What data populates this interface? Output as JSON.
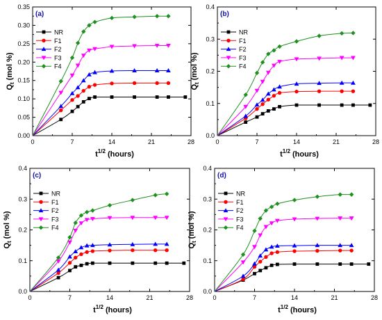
{
  "chart_data": [
    {
      "type": "line",
      "panel_label": "(a)",
      "xlabel": "t",
      "xlabel_sup": "1/2",
      "xlabel_unit": "(hours)",
      "ylabel": "Q",
      "ylabel_sub": "t",
      "ylabel_unit": "(mol %)",
      "xlim": [
        0,
        28
      ],
      "ylim": [
        0,
        0.35
      ],
      "xticks": [
        "0",
        "7",
        "14",
        "21",
        "28"
      ],
      "yticks": [
        "0.00",
        "0.05",
        "0.10",
        "0.15",
        "0.20",
        "0.25",
        "0.30",
        "0.35"
      ],
      "legend_position": "top-left",
      "series": [
        {
          "name": "NR",
          "color": "#000000",
          "marker": "square",
          "x": [
            0,
            5,
            7,
            8,
            9,
            10,
            11,
            14,
            18,
            22,
            24,
            27
          ],
          "y": [
            0,
            0.044,
            0.066,
            0.079,
            0.092,
            0.101,
            0.105,
            0.105,
            0.105,
            0.105,
            0.105,
            0.105
          ]
        },
        {
          "name": "F1",
          "color": "#ff0000",
          "marker": "circle",
          "x": [
            0,
            5,
            7,
            8,
            9,
            10,
            11,
            14,
            18,
            22,
            24
          ],
          "y": [
            0,
            0.069,
            0.097,
            0.108,
            0.122,
            0.133,
            0.138,
            0.142,
            0.143,
            0.143,
            0.143
          ]
        },
        {
          "name": "F2",
          "color": "#0000ff",
          "marker": "triangle-up",
          "x": [
            0,
            5,
            7,
            8,
            9,
            10,
            11,
            14,
            18,
            22,
            24
          ],
          "y": [
            0,
            0.08,
            0.115,
            0.131,
            0.15,
            0.166,
            0.172,
            0.176,
            0.177,
            0.177,
            0.177
          ]
        },
        {
          "name": "F3",
          "color": "#ff00ff",
          "marker": "triangle-down",
          "x": [
            0,
            5,
            7,
            8,
            9,
            10,
            11,
            14,
            18,
            22,
            24
          ],
          "y": [
            0,
            0.117,
            0.164,
            0.191,
            0.218,
            0.232,
            0.236,
            0.242,
            0.244,
            0.245,
            0.245
          ]
        },
        {
          "name": "F4",
          "color": "#1f8f1f",
          "marker": "diamond",
          "x": [
            0,
            5,
            7,
            8,
            9,
            10,
            11,
            14,
            18,
            22,
            24
          ],
          "y": [
            0,
            0.148,
            0.212,
            0.252,
            0.283,
            0.3,
            0.309,
            0.32,
            0.323,
            0.325,
            0.325
          ]
        }
      ]
    },
    {
      "type": "line",
      "panel_label": "(b)",
      "xlabel": "t",
      "xlabel_sup": "1/2",
      "xlabel_unit": "(hours)",
      "ylabel": "Q",
      "ylabel_sub": "t",
      "ylabel_unit": "(mol %)",
      "xlim": [
        0,
        28
      ],
      "ylim": [
        0,
        0.4
      ],
      "xticks": [
        "0",
        "7",
        "14",
        "21",
        "28"
      ],
      "yticks": [
        "0.0",
        "0.1",
        "0.2",
        "0.3",
        "0.4"
      ],
      "legend_position": "top-left",
      "series": [
        {
          "name": "NR",
          "color": "#000000",
          "marker": "square",
          "x": [
            0,
            5,
            7,
            8,
            9,
            10,
            11,
            14,
            18,
            22,
            24,
            27
          ],
          "y": [
            0,
            0.042,
            0.058,
            0.068,
            0.077,
            0.083,
            0.09,
            0.095,
            0.095,
            0.095,
            0.095,
            0.095
          ]
        },
        {
          "name": "F1",
          "color": "#ff0000",
          "marker": "circle",
          "x": [
            0,
            5,
            7,
            8,
            9,
            10,
            11,
            14,
            18,
            22,
            24
          ],
          "y": [
            0,
            0.054,
            0.083,
            0.098,
            0.112,
            0.124,
            0.133,
            0.137,
            0.138,
            0.138,
            0.138
          ]
        },
        {
          "name": "F2",
          "color": "#0000ff",
          "marker": "triangle-up",
          "x": [
            0,
            5,
            7,
            8,
            9,
            10,
            11,
            14,
            18,
            22,
            24
          ],
          "y": [
            0,
            0.061,
            0.096,
            0.111,
            0.13,
            0.143,
            0.152,
            0.161,
            0.163,
            0.164,
            0.164
          ]
        },
        {
          "name": "F3",
          "color": "#ff00ff",
          "marker": "triangle-down",
          "x": [
            0,
            5,
            7,
            8,
            9,
            10,
            11,
            14,
            18,
            22,
            24
          ],
          "y": [
            0,
            0.09,
            0.14,
            0.168,
            0.196,
            0.218,
            0.23,
            0.238,
            0.24,
            0.242,
            0.242
          ]
        },
        {
          "name": "F4",
          "color": "#1f8f1f",
          "marker": "diamond",
          "x": [
            0,
            5,
            7,
            8,
            9,
            10,
            11,
            14,
            18,
            22,
            24
          ],
          "y": [
            0,
            0.127,
            0.195,
            0.228,
            0.254,
            0.265,
            0.277,
            0.293,
            0.31,
            0.318,
            0.319
          ]
        }
      ]
    },
    {
      "type": "line",
      "panel_label": "(c)",
      "xlabel": "t",
      "xlabel_sup": "1/2",
      "xlabel_unit": "(hours)",
      "ylabel": "Q",
      "ylabel_sub": "t",
      "ylabel_unit": "(mol %)",
      "xlim": [
        0,
        28
      ],
      "ylim": [
        0,
        0.4
      ],
      "xticks": [
        "0",
        "7",
        "14",
        "21",
        "28"
      ],
      "yticks": [
        "0.0",
        "0.1",
        "0.2",
        "0.3",
        "0.4"
      ],
      "legend_position": "top-left",
      "series": [
        {
          "name": "NR",
          "color": "#000000",
          "marker": "square",
          "x": [
            0,
            5,
            7,
            8,
            9,
            10,
            11,
            14,
            18,
            22,
            24,
            27
          ],
          "y": [
            0,
            0.045,
            0.068,
            0.08,
            0.085,
            0.09,
            0.092,
            0.092,
            0.092,
            0.092,
            0.092,
            0.092
          ]
        },
        {
          "name": "F1",
          "color": "#ff0000",
          "marker": "circle",
          "x": [
            0,
            5,
            7,
            8,
            9,
            10,
            11,
            14,
            18,
            22,
            24
          ],
          "y": [
            0,
            0.06,
            0.093,
            0.11,
            0.121,
            0.128,
            0.131,
            0.133,
            0.134,
            0.134,
            0.134
          ]
        },
        {
          "name": "F2",
          "color": "#0000ff",
          "marker": "triangle-up",
          "x": [
            0,
            5,
            7,
            8,
            9,
            10,
            11,
            14,
            18,
            22,
            24
          ],
          "y": [
            0,
            0.07,
            0.113,
            0.13,
            0.143,
            0.149,
            0.15,
            0.152,
            0.153,
            0.154,
            0.154
          ]
        },
        {
          "name": "F3",
          "color": "#ff00ff",
          "marker": "triangle-down",
          "x": [
            0,
            5,
            7,
            8,
            9,
            10,
            11,
            14,
            18,
            22,
            24
          ],
          "y": [
            0,
            0.098,
            0.16,
            0.198,
            0.222,
            0.233,
            0.236,
            0.239,
            0.24,
            0.24,
            0.24
          ]
        },
        {
          "name": "F4",
          "color": "#1f8f1f",
          "marker": "diamond",
          "x": [
            0,
            5,
            7,
            8,
            9,
            10,
            11,
            14,
            18,
            22,
            24
          ],
          "y": [
            0,
            0.11,
            0.176,
            0.223,
            0.247,
            0.258,
            0.263,
            0.28,
            0.297,
            0.313,
            0.317
          ]
        }
      ]
    },
    {
      "type": "line",
      "panel_label": "(d)",
      "xlabel": "t",
      "xlabel_sup": "1/2",
      "xlabel_unit": "(hours)",
      "ylabel": "Q",
      "ylabel_sub": "t",
      "ylabel_unit": "(mol %)",
      "xlim": [
        0,
        28
      ],
      "ylim": [
        0,
        0.4
      ],
      "xticks": [
        "0",
        "7",
        "14",
        "21",
        "28"
      ],
      "yticks": [
        "0.0",
        "0.1",
        "0.2",
        "0.3",
        "0.4"
      ],
      "legend_position": "top-left",
      "series": [
        {
          "name": "NR",
          "color": "#000000",
          "marker": "square",
          "x": [
            0,
            5,
            7,
            8,
            9,
            10,
            11,
            14,
            18,
            22,
            24,
            27
          ],
          "y": [
            0,
            0.037,
            0.058,
            0.068,
            0.077,
            0.085,
            0.088,
            0.089,
            0.089,
            0.089,
            0.089,
            0.089
          ]
        },
        {
          "name": "F1",
          "color": "#ff0000",
          "marker": "circle",
          "x": [
            0,
            5,
            7,
            8,
            9,
            10,
            11,
            14,
            18,
            22,
            24
          ],
          "y": [
            0,
            0.04,
            0.08,
            0.097,
            0.112,
            0.124,
            0.128,
            0.131,
            0.132,
            0.133,
            0.133
          ]
        },
        {
          "name": "F2",
          "color": "#0000ff",
          "marker": "triangle-up",
          "x": [
            0,
            5,
            7,
            8,
            9,
            10,
            11,
            14,
            18,
            22,
            24
          ],
          "y": [
            0,
            0.05,
            0.09,
            0.116,
            0.136,
            0.145,
            0.148,
            0.149,
            0.15,
            0.15,
            0.15
          ]
        },
        {
          "name": "F3",
          "color": "#ff00ff",
          "marker": "triangle-down",
          "x": [
            0,
            5,
            7,
            8,
            9,
            10,
            11,
            14,
            18,
            22,
            24
          ],
          "y": [
            0,
            0.095,
            0.145,
            0.183,
            0.21,
            0.222,
            0.23,
            0.235,
            0.237,
            0.238,
            0.238
          ]
        },
        {
          "name": "F4",
          "color": "#1f8f1f",
          "marker": "diamond",
          "x": [
            0,
            5,
            7,
            8,
            9,
            10,
            11,
            14,
            18,
            22,
            24
          ],
          "y": [
            0,
            0.12,
            0.197,
            0.237,
            0.263,
            0.275,
            0.285,
            0.297,
            0.308,
            0.315,
            0.315
          ]
        }
      ]
    }
  ]
}
